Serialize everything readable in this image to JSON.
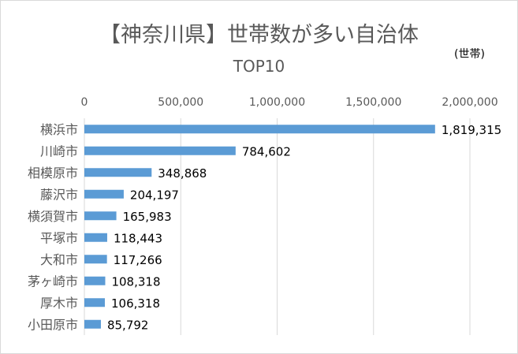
{
  "chart_data": {
    "type": "bar",
    "orientation": "horizontal",
    "title": "【神奈川県】世帯数が多い自治体",
    "subtitle": "TOP10",
    "unit": "(世帯)",
    "categories": [
      "横浜市",
      "川崎市",
      "相模原市",
      "藤沢市",
      "横須賀市",
      "平塚市",
      "大和市",
      "茅ヶ崎市",
      "厚木市",
      "小田原市"
    ],
    "values": [
      1819315,
      784602,
      348868,
      204197,
      165983,
      118443,
      117266,
      108318,
      106318,
      85792
    ],
    "data_labels": [
      "1,819,315",
      "784,602",
      "348,868",
      "204,197",
      "165,983",
      "118,443",
      "117,266",
      "108,318",
      "106,318",
      "85,792"
    ],
    "x_ticks": [
      0,
      500000,
      1000000,
      1500000,
      2000000
    ],
    "x_tick_labels": [
      "0",
      "500,000",
      "1,000,000",
      "1,500,000",
      "2,000,000"
    ],
    "xlim": [
      0,
      2000000
    ],
    "x_axis_position": "top",
    "grid": true,
    "bar_color": "#5b9bd5",
    "grid_color": "#d9d9d9"
  }
}
